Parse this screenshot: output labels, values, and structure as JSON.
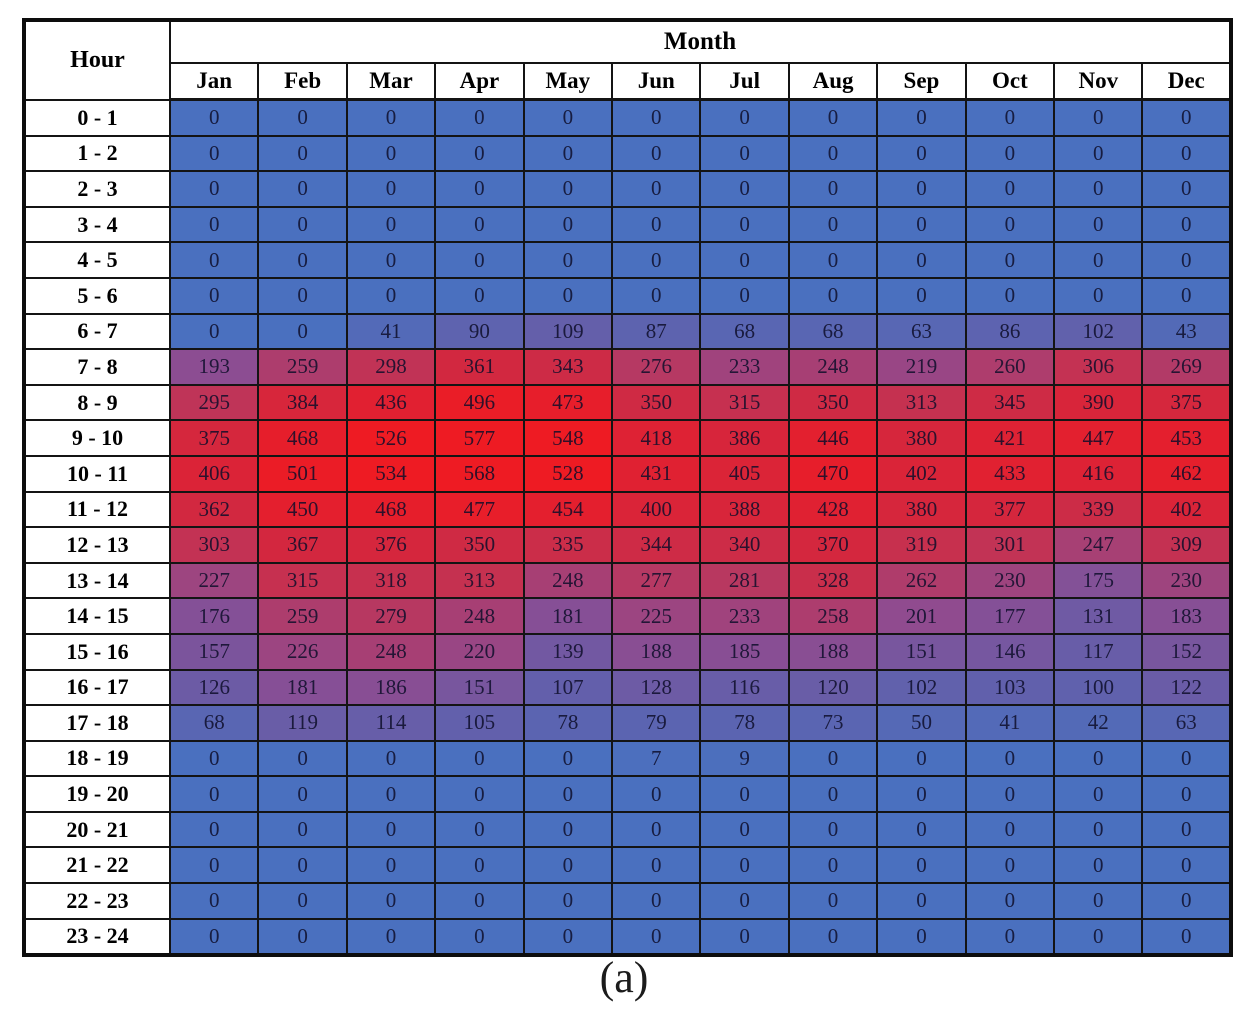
{
  "caption": "(a)",
  "chart_data": {
    "type": "heatmap",
    "title": "",
    "corner_label": "Hour",
    "column_group_label": "Month",
    "columns": [
      "Jan",
      "Feb",
      "Mar",
      "Apr",
      "May",
      "Jun",
      "Jul",
      "Aug",
      "Sep",
      "Oct",
      "Nov",
      "Dec"
    ],
    "row_labels": [
      "0 - 1",
      "1 - 2",
      "2 - 3",
      "3 - 4",
      "4 - 5",
      "5 - 6",
      "6 - 7",
      "7 - 8",
      "8 - 9",
      "9 - 10",
      "10 - 11",
      "11 - 12",
      "12 - 13",
      "13 - 14",
      "14 - 15",
      "15 - 16",
      "16 - 17",
      "17 - 18",
      "18 - 19",
      "19 - 20",
      "20 - 21",
      "21 - 22",
      "22 - 23",
      "23 - 24"
    ],
    "matrix": [
      [
        0,
        0,
        0,
        0,
        0,
        0,
        0,
        0,
        0,
        0,
        0,
        0
      ],
      [
        0,
        0,
        0,
        0,
        0,
        0,
        0,
        0,
        0,
        0,
        0,
        0
      ],
      [
        0,
        0,
        0,
        0,
        0,
        0,
        0,
        0,
        0,
        0,
        0,
        0
      ],
      [
        0,
        0,
        0,
        0,
        0,
        0,
        0,
        0,
        0,
        0,
        0,
        0
      ],
      [
        0,
        0,
        0,
        0,
        0,
        0,
        0,
        0,
        0,
        0,
        0,
        0
      ],
      [
        0,
        0,
        0,
        0,
        0,
        0,
        0,
        0,
        0,
        0,
        0,
        0
      ],
      [
        0,
        0,
        41,
        90,
        109,
        87,
        68,
        68,
        63,
        86,
        102,
        43
      ],
      [
        193,
        259,
        298,
        361,
        343,
        276,
        233,
        248,
        219,
        260,
        306,
        269
      ],
      [
        295,
        384,
        436,
        496,
        473,
        350,
        315,
        350,
        313,
        345,
        390,
        375
      ],
      [
        375,
        468,
        526,
        577,
        548,
        418,
        386,
        446,
        380,
        421,
        447,
        453
      ],
      [
        406,
        501,
        534,
        568,
        528,
        431,
        405,
        470,
        402,
        433,
        416,
        462
      ],
      [
        362,
        450,
        468,
        477,
        454,
        400,
        388,
        428,
        380,
        377,
        339,
        402
      ],
      [
        303,
        367,
        376,
        350,
        335,
        344,
        340,
        370,
        319,
        301,
        247,
        309
      ],
      [
        227,
        315,
        318,
        313,
        248,
        277,
        281,
        328,
        262,
        230,
        175,
        230
      ],
      [
        176,
        259,
        279,
        248,
        181,
        225,
        233,
        258,
        201,
        177,
        131,
        183
      ],
      [
        157,
        226,
        248,
        220,
        139,
        188,
        185,
        188,
        151,
        146,
        117,
        152
      ],
      [
        126,
        181,
        186,
        151,
        107,
        128,
        116,
        120,
        102,
        103,
        100,
        122
      ],
      [
        68,
        119,
        114,
        105,
        78,
        79,
        78,
        73,
        50,
        41,
        42,
        63
      ],
      [
        0,
        0,
        0,
        0,
        0,
        7,
        9,
        0,
        0,
        0,
        0,
        0
      ],
      [
        0,
        0,
        0,
        0,
        0,
        0,
        0,
        0,
        0,
        0,
        0,
        0
      ],
      [
        0,
        0,
        0,
        0,
        0,
        0,
        0,
        0,
        0,
        0,
        0,
        0
      ],
      [
        0,
        0,
        0,
        0,
        0,
        0,
        0,
        0,
        0,
        0,
        0,
        0
      ],
      [
        0,
        0,
        0,
        0,
        0,
        0,
        0,
        0,
        0,
        0,
        0,
        0
      ],
      [
        0,
        0,
        0,
        0,
        0,
        0,
        0,
        0,
        0,
        0,
        0,
        0
      ]
    ],
    "value_range": [
      0,
      577
    ],
    "colorscale_stops": [
      [
        0,
        "#4a70bf"
      ],
      [
        100,
        "#6061ad"
      ],
      [
        200,
        "#8f4b90"
      ],
      [
        300,
        "#c23355"
      ],
      [
        360,
        "#d22840"
      ],
      [
        440,
        "#e22030"
      ],
      [
        520,
        "#ee1b23"
      ]
    ]
  }
}
